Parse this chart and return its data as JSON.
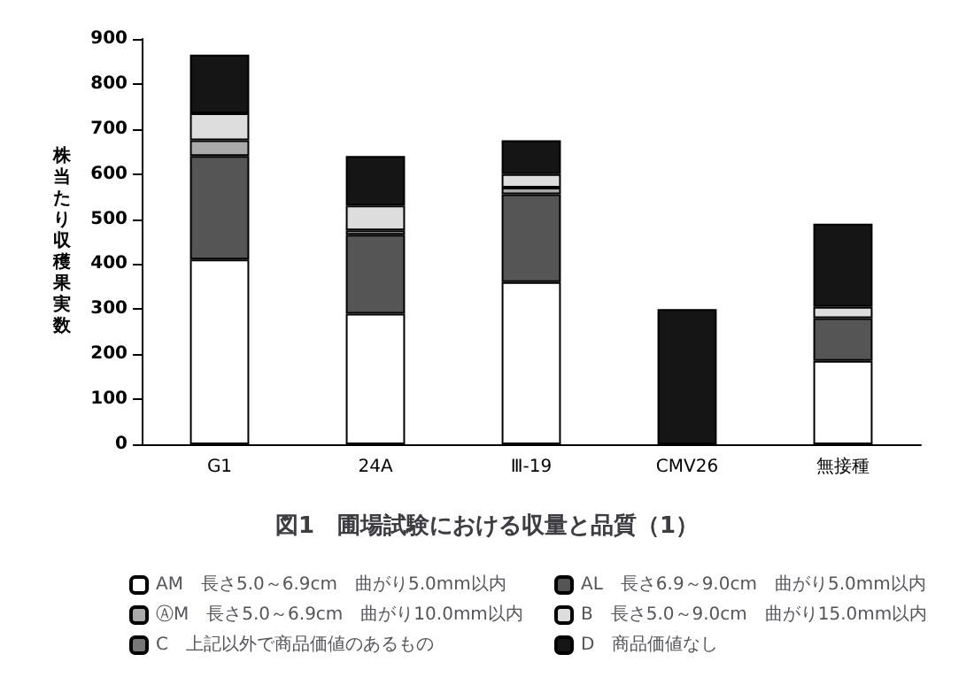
{
  "chart_data": {
    "type": "bar",
    "stacked": true,
    "title": "図1　圃場試験における収量と品質（1）",
    "ylabel": "株当たり収穫果実数",
    "categories": [
      "G1",
      "24A",
      "Ⅲ-19",
      "CMV26",
      "無接種"
    ],
    "ylim": [
      0,
      900
    ],
    "yticks": [
      0,
      100,
      200,
      300,
      400,
      500,
      600,
      700,
      800,
      900
    ],
    "grid": false,
    "legend": "bottom",
    "series": [
      {
        "name": "AM　長さ5.0～6.9cm　曲がり5.0mm以内",
        "color": "#ffffff",
        "values": [
          410,
          290,
          360,
          null,
          185
        ]
      },
      {
        "name": "AL　長さ6.9～9.0cm　曲がり5.0mm以内",
        "color": "#555555",
        "values": [
          230,
          175,
          195,
          null,
          95
        ]
      },
      {
        "name": "ⒶM　長さ5.0～6.9cm　曲がり10.0mm以内",
        "color": "#aaaaaa",
        "values": [
          35,
          10,
          15,
          null,
          null
        ]
      },
      {
        "name": "B　長さ5.0～9.0cm　曲がり15.0mm以内",
        "color": "#dddddd",
        "values": [
          60,
          55,
          30,
          null,
          25
        ]
      },
      {
        "name": "C　上記以外で商品価値のあるもの",
        "color": "#777777",
        "values": [
          null,
          null,
          null,
          null,
          null
        ]
      },
      {
        "name": "D　商品価値なし",
        "color": "#151515",
        "values": [
          130,
          110,
          75,
          300,
          185
        ]
      }
    ]
  }
}
